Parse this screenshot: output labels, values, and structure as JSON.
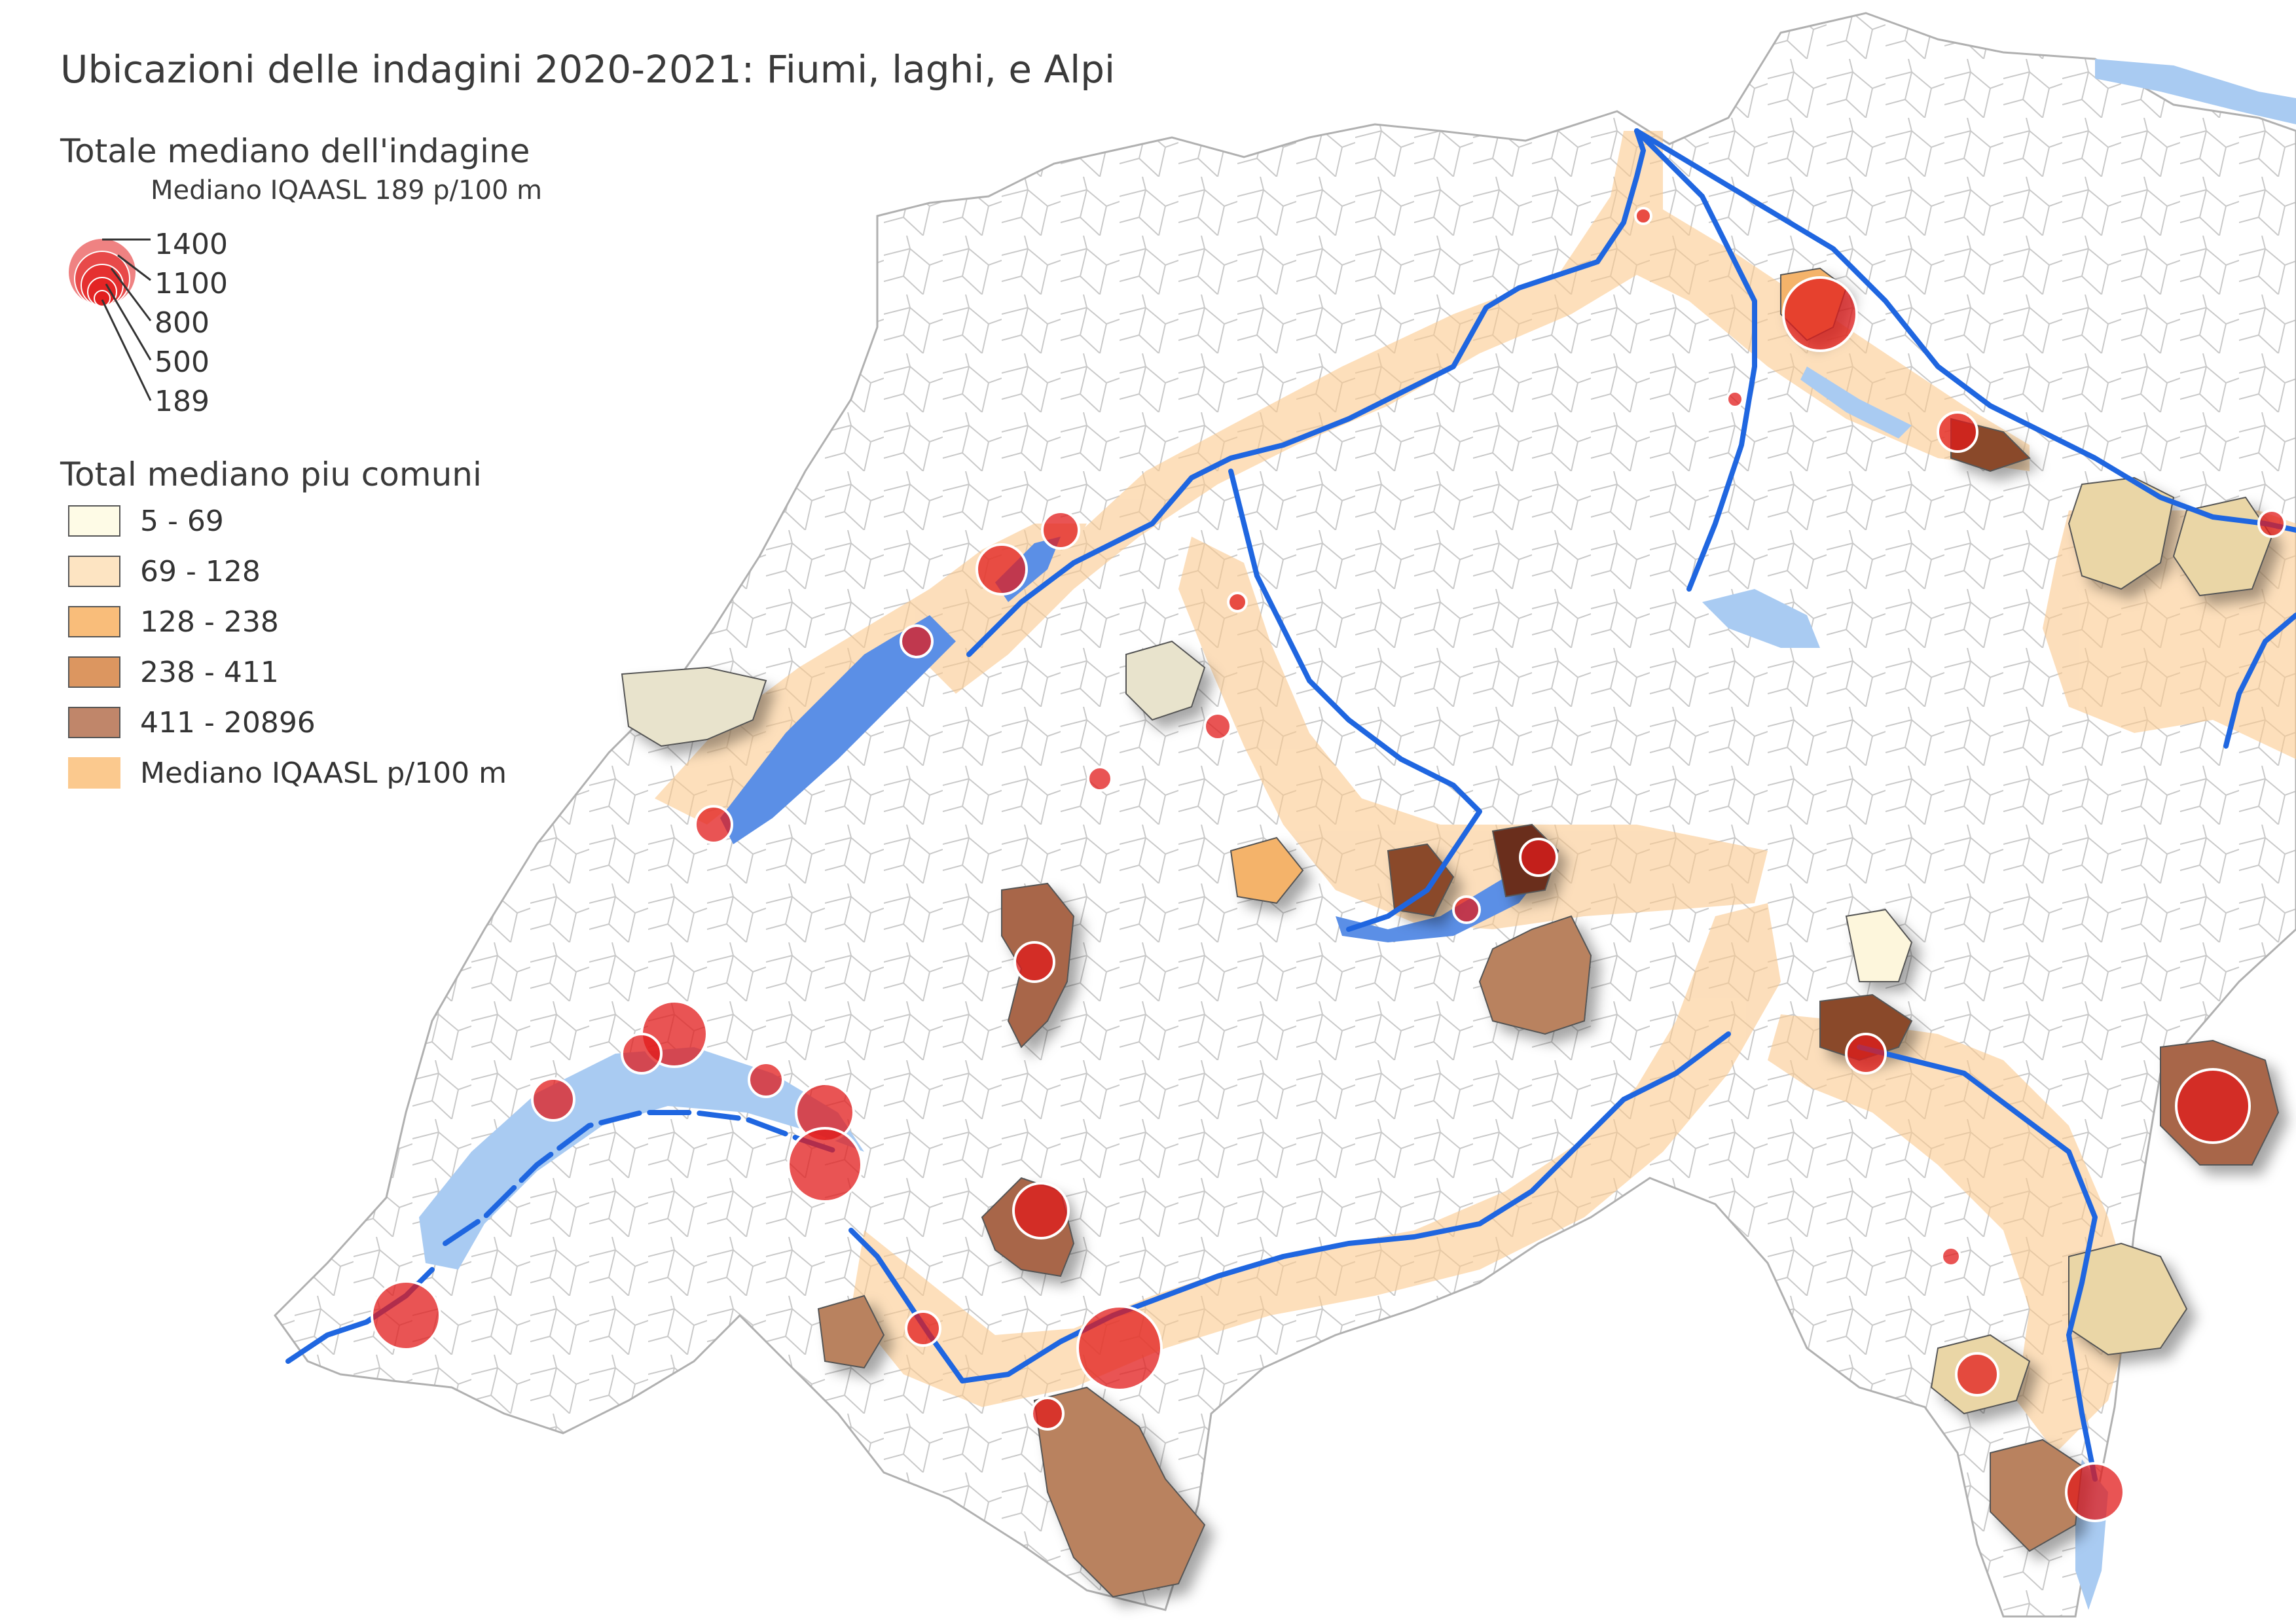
{
  "title": "Ubicazioni delle indagini 2020-2021: Fiumi, laghi, e Alpi",
  "legend_survey": {
    "heading": "Totale mediano dell'indagine",
    "subheading": "Mediano IQAASL 189 p/100 m",
    "sizes": [
      "1400",
      "1100",
      "800",
      "500",
      "189"
    ]
  },
  "legend_municipal": {
    "heading": "Total mediano piu comuni",
    "classes": [
      {
        "label": "5 - 69",
        "color": "#fefbe6"
      },
      {
        "label": "69 - 128",
        "color": "#fde4c2"
      },
      {
        "label": "128 - 238",
        "color": "#f9bd7a"
      },
      {
        "label": "238 - 411",
        "color": "#dc9660"
      },
      {
        "label": "411 - 20896",
        "color": "#c0866a"
      },
      {
        "label": "Mediano IQAASL p/100 m",
        "color": "#fbc98e"
      }
    ]
  },
  "colors": {
    "river": "#1f66e0",
    "lake": "#a9cbf2",
    "survey_circle": "#e21b1b",
    "border": "#bdbdbd"
  }
}
